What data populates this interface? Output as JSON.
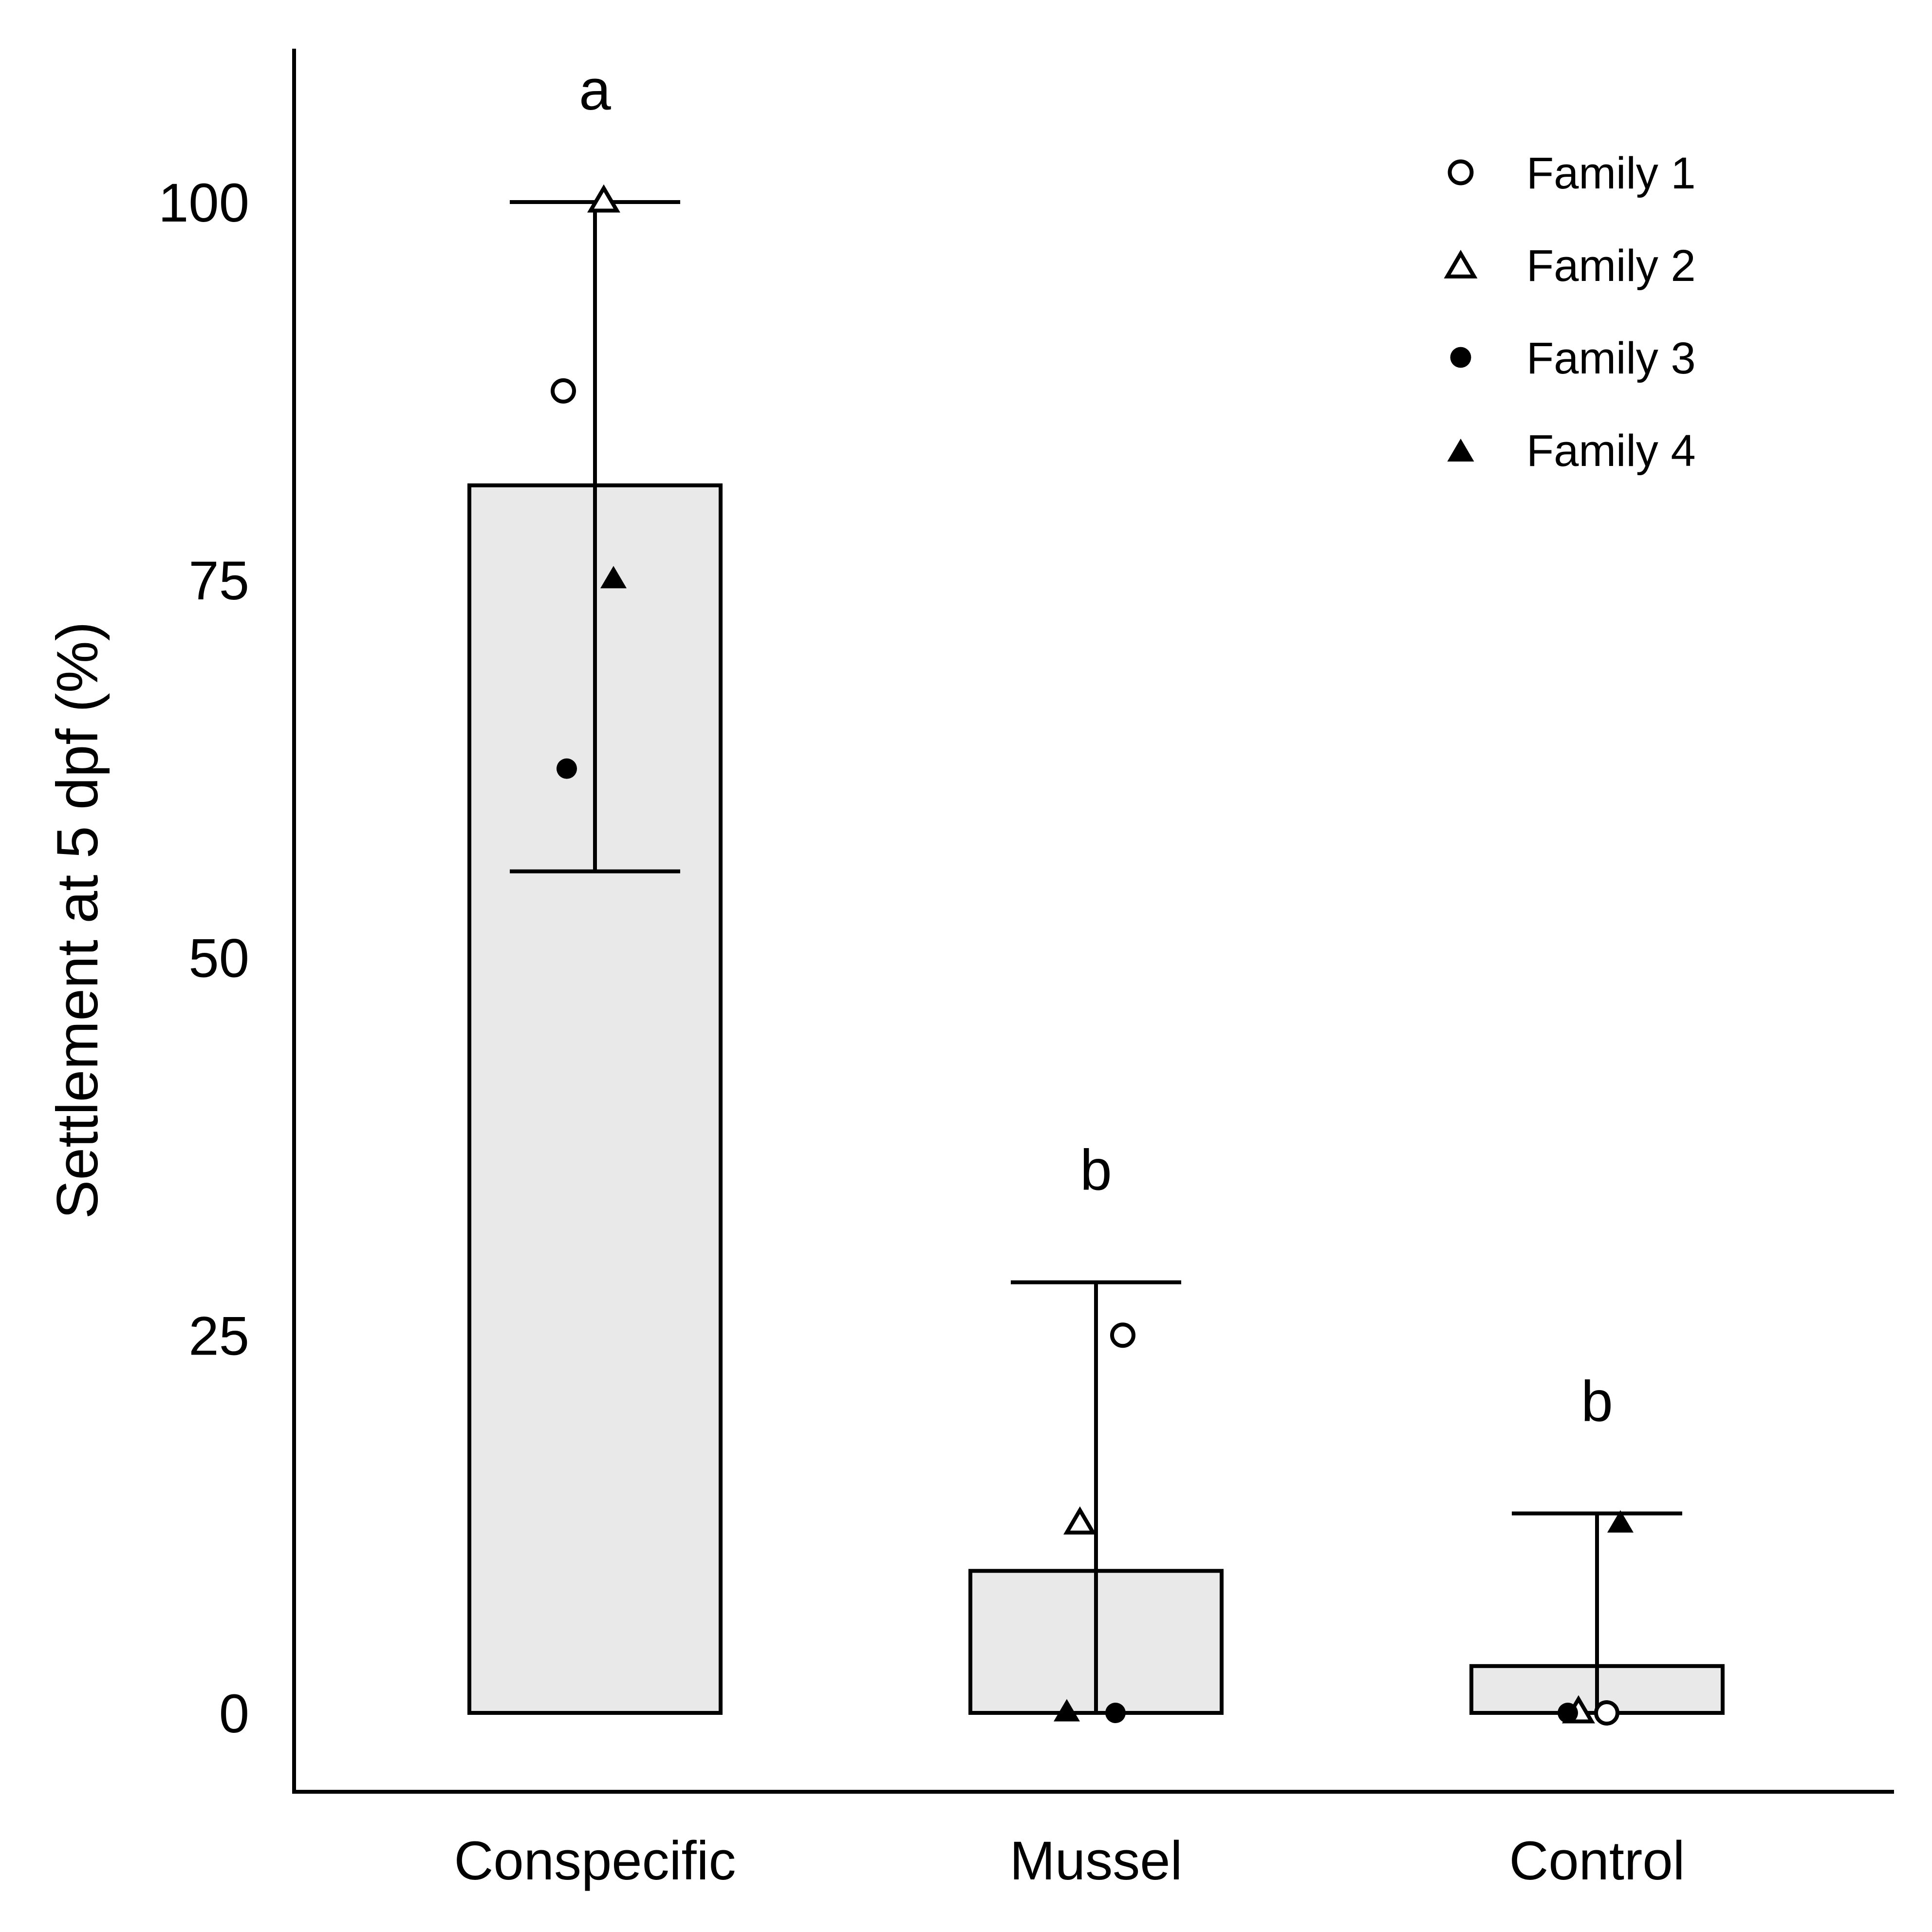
{
  "chart_data": {
    "type": "bar",
    "title": "",
    "xlabel": "",
    "ylabel": "Settlement at 5 dpf (%)",
    "ylim": [
      -5,
      112
    ],
    "yticks": [
      0,
      25,
      50,
      75,
      100
    ],
    "grid": false,
    "legend_position": "top-right",
    "categories": [
      "Conspecific",
      "Mussel",
      "Control"
    ],
    "means": [
      81.25,
      9.4,
      3.1
    ],
    "error_low": [
      55.7,
      0,
      0
    ],
    "error_high": [
      100,
      28.5,
      13.2
    ],
    "significance_letters": [
      "a",
      "b",
      "b"
    ],
    "bar_fill": "#e9e9e9",
    "series": [
      {
        "name": "Family 1",
        "marker": "open-circle",
        "values": [
          87.5,
          25,
          0
        ]
      },
      {
        "name": "Family 2",
        "marker": "open-triangle",
        "values": [
          100,
          12.5,
          0
        ]
      },
      {
        "name": "Family 3",
        "marker": "filled-circle",
        "values": [
          62.5,
          0,
          0
        ]
      },
      {
        "name": "Family 4",
        "marker": "filled-triangle",
        "values": [
          75,
          0,
          12.5
        ]
      }
    ]
  }
}
